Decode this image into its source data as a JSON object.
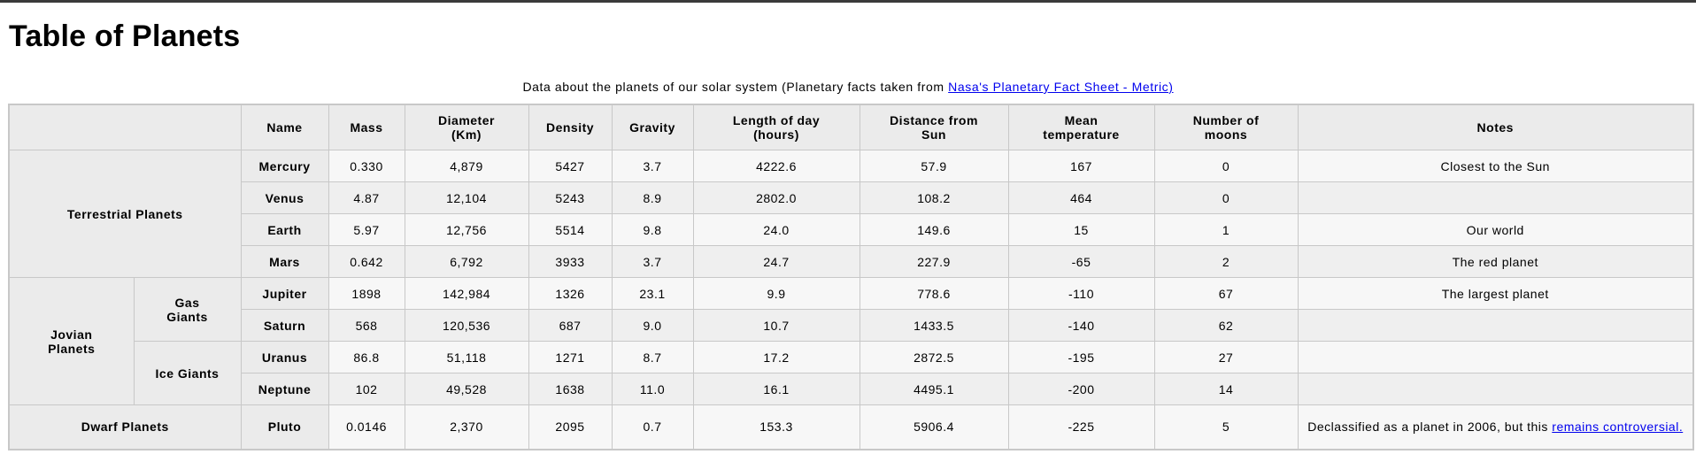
{
  "title": "Table of Planets",
  "caption": {
    "text": "Data about the planets of our solar system (Planetary facts taken from ",
    "link": "Nasa's Planetary Fact Sheet - Metric)"
  },
  "headers": [
    "Name",
    "Mass",
    "Diameter (Km)",
    "Density",
    "Gravity",
    "Length of day (hours)",
    "Distance from Sun",
    "Mean temperature",
    "Number of moons",
    "Notes"
  ],
  "groups": {
    "terrestrial": "Terrestrial Planets",
    "jovian": "Jovian Planets",
    "gas": "Gas Giants",
    "ice": "Ice Giants",
    "dwarf": "Dwarf Planets"
  },
  "planets": [
    {
      "name": "Mercury",
      "mass": "0.330",
      "diameter": "4,879",
      "density": "5427",
      "gravity": "3.7",
      "day": "4222.6",
      "distance": "57.9",
      "temp": "167",
      "moons": "0",
      "notes": "Closest to the Sun"
    },
    {
      "name": "Venus",
      "mass": "4.87",
      "diameter": "12,104",
      "density": "5243",
      "gravity": "8.9",
      "day": "2802.0",
      "distance": "108.2",
      "temp": "464",
      "moons": "0",
      "notes": ""
    },
    {
      "name": "Earth",
      "mass": "5.97",
      "diameter": "12,756",
      "density": "5514",
      "gravity": "9.8",
      "day": "24.0",
      "distance": "149.6",
      "temp": "15",
      "moons": "1",
      "notes": "Our world"
    },
    {
      "name": "Mars",
      "mass": "0.642",
      "diameter": "6,792",
      "density": "3933",
      "gravity": "3.7",
      "day": "24.7",
      "distance": "227.9",
      "temp": "-65",
      "moons": "2",
      "notes": "The red planet"
    },
    {
      "name": "Jupiter",
      "mass": "1898",
      "diameter": "142,984",
      "density": "1326",
      "gravity": "23.1",
      "day": "9.9",
      "distance": "778.6",
      "temp": "-110",
      "moons": "67",
      "notes": "The largest planet"
    },
    {
      "name": "Saturn",
      "mass": "568",
      "diameter": "120,536",
      "density": "687",
      "gravity": "9.0",
      "day": "10.7",
      "distance": "1433.5",
      "temp": "-140",
      "moons": "62",
      "notes": ""
    },
    {
      "name": "Uranus",
      "mass": "86.8",
      "diameter": "51,118",
      "density": "1271",
      "gravity": "8.7",
      "day": "17.2",
      "distance": "2872.5",
      "temp": "-195",
      "moons": "27",
      "notes": ""
    },
    {
      "name": "Neptune",
      "mass": "102",
      "diameter": "49,528",
      "density": "1638",
      "gravity": "11.0",
      "day": "16.1",
      "distance": "4495.1",
      "temp": "-200",
      "moons": "14",
      "notes": ""
    },
    {
      "name": "Pluto",
      "mass": "0.0146",
      "diameter": "2,370",
      "density": "2095",
      "gravity": "0.7",
      "day": "153.3",
      "distance": "5906.4",
      "temp": "-225",
      "moons": "5",
      "notes": "Declassified as a planet in 2006, but this ",
      "notes_link": "remains controversial."
    }
  ]
}
